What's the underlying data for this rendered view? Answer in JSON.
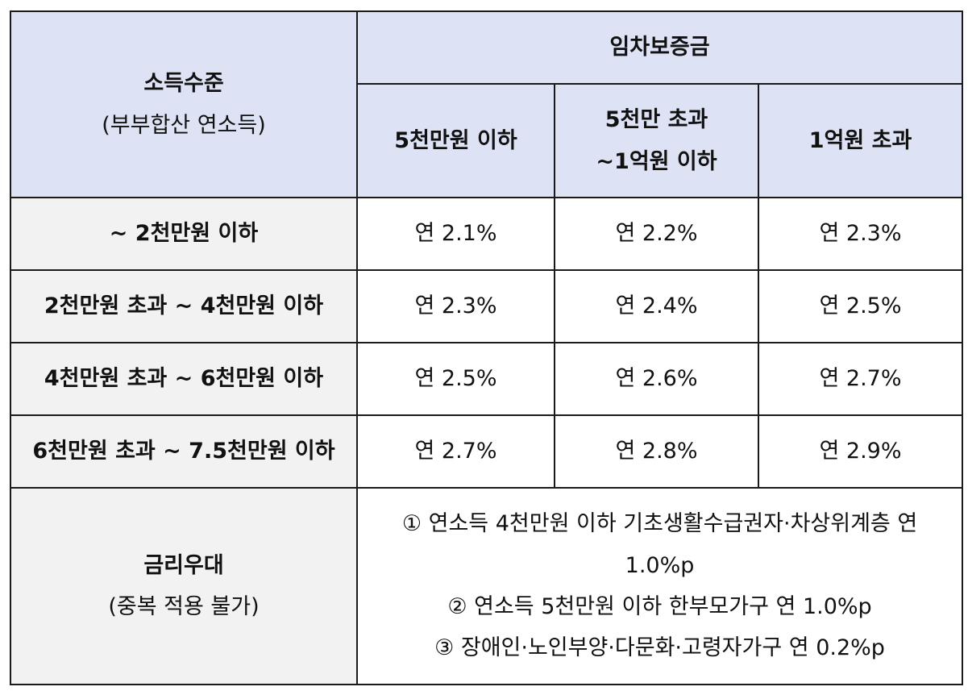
{
  "header": {
    "income_title": "소득수준",
    "income_subtitle": "(부부합산 연소득)",
    "deposit_title": "임차보증금",
    "col1": "5천만원 이하",
    "col2_line1": "5천만 초과",
    "col2_line2": "~1억원 이하",
    "col3": "1억원 초과"
  },
  "rows": [
    {
      "label": "~ 2천만원 이하",
      "rates": [
        "연 2.1%",
        "연 2.2%",
        "연 2.3%"
      ]
    },
    {
      "label": "2천만원 초과 ~ 4천만원 이하",
      "rates": [
        "연 2.3%",
        "연 2.4%",
        "연 2.5%"
      ]
    },
    {
      "label": "4천만원 초과 ~ 6천만원 이하",
      "rates": [
        "연 2.5%",
        "연 2.6%",
        "연 2.7%"
      ]
    },
    {
      "label": "6천만원 초과 ~ 7.5천만원 이하",
      "rates": [
        "연 2.7%",
        "연 2.8%",
        "연 2.9%"
      ]
    }
  ],
  "benefit": {
    "title": "금리우대",
    "subtitle": "(중복 적용 불가)",
    "line1": "① 연소득 4천만원 이하 기초생활수급권자·차상위계층 연",
    "line1b": "1.0%p",
    "line2": "② 연소득 5천만원 이하 한부모가구 연 1.0%p",
    "line3": "③ 장애인·노인부양·다문화·고령자가구 연 0.2%p"
  },
  "colors": {
    "header_bg": "#dde3f4",
    "side_bg": "#f2f2f2",
    "border": "#1a1a1a"
  }
}
